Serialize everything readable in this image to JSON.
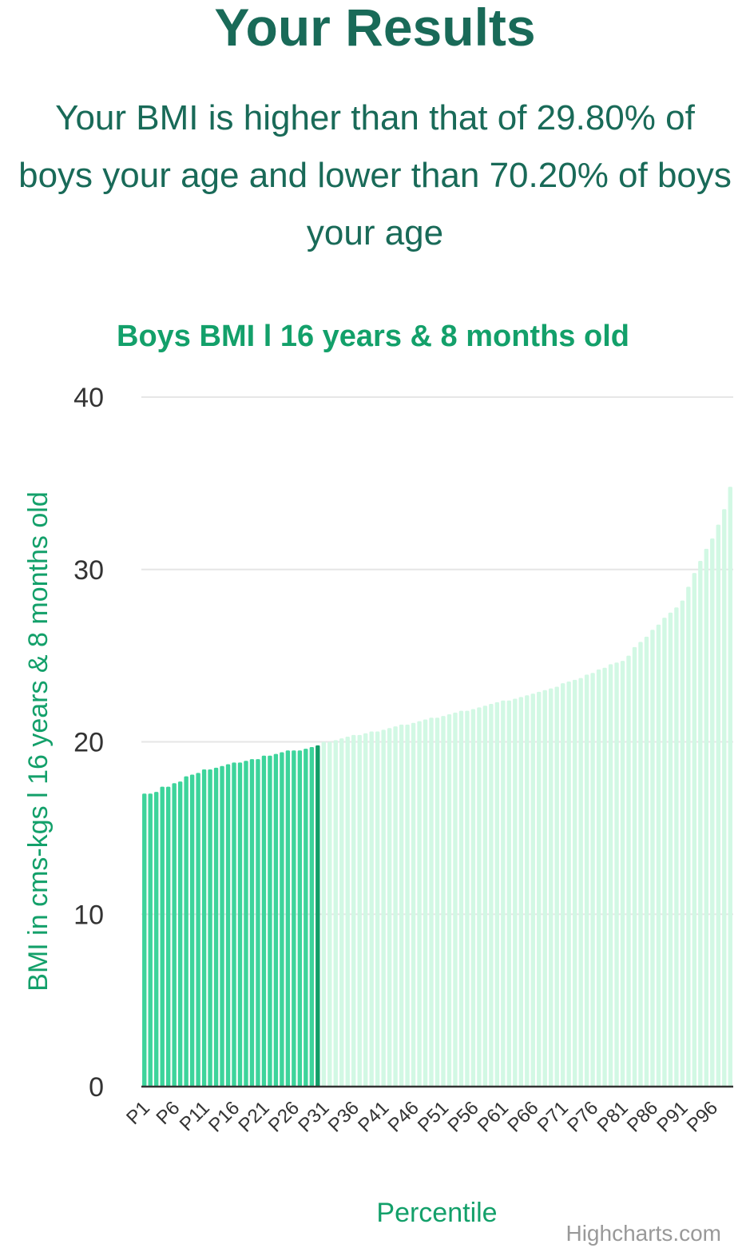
{
  "header": {
    "title": "Your Results",
    "summary": "Your BMI is higher than that of 29.80% of boys your age and lower than 70.20% of boys your age"
  },
  "colors": {
    "heading": "#196a58",
    "accent": "#13a06a",
    "bar_below": "#3dd49b",
    "bar_user": "#129e68",
    "bar_above": "#d2f8e4",
    "grid": "#e6e6e6",
    "axis": "#333333"
  },
  "chart_data": {
    "type": "bar",
    "title": "Boys BMI l 16 years & 8 months old",
    "xlabel": "Percentile",
    "ylabel": "BMI in cms-kgs l 16 years & 8 months old",
    "ylim": [
      0,
      40
    ],
    "yticks": [
      0,
      10,
      20,
      30,
      40
    ],
    "grid": true,
    "highlight_index": 29,
    "below_count": 29,
    "categories": [
      "P1",
      "P2",
      "P3",
      "P4",
      "P5",
      "P6",
      "P7",
      "P8",
      "P9",
      "P10",
      "P11",
      "P12",
      "P13",
      "P14",
      "P15",
      "P16",
      "P17",
      "P18",
      "P19",
      "P20",
      "P21",
      "P22",
      "P23",
      "P24",
      "P25",
      "P26",
      "P27",
      "P28",
      "P29",
      "P30",
      "P31",
      "P32",
      "P33",
      "P34",
      "P35",
      "P36",
      "P37",
      "P38",
      "P39",
      "P40",
      "P41",
      "P42",
      "P43",
      "P44",
      "P45",
      "P46",
      "P47",
      "P48",
      "P49",
      "P50",
      "P51",
      "P52",
      "P53",
      "P54",
      "P55",
      "P56",
      "P57",
      "P58",
      "P59",
      "P60",
      "P61",
      "P62",
      "P63",
      "P64",
      "P65",
      "P66",
      "P67",
      "P68",
      "P69",
      "P70",
      "P71",
      "P72",
      "P73",
      "P74",
      "P75",
      "P76",
      "P77",
      "P78",
      "P79",
      "P80",
      "P81",
      "P82",
      "P83",
      "P84",
      "P85",
      "P86",
      "P87",
      "P88",
      "P89",
      "P90",
      "P91",
      "P92",
      "P93",
      "P94",
      "P95",
      "P96",
      "P97",
      "P98",
      "P99"
    ],
    "tick_labels": [
      "P1",
      "P6",
      "P11",
      "P16",
      "P21",
      "P26",
      "P31",
      "P36",
      "P41",
      "P46",
      "P51",
      "P56",
      "P61",
      "P66",
      "P71",
      "P76",
      "P81",
      "P86",
      "P91",
      "P96"
    ],
    "values": [
      17.0,
      17.0,
      17.1,
      17.4,
      17.4,
      17.6,
      17.7,
      18.0,
      18.1,
      18.2,
      18.4,
      18.4,
      18.5,
      18.6,
      18.7,
      18.8,
      18.8,
      18.9,
      19.0,
      19.0,
      19.2,
      19.2,
      19.3,
      19.4,
      19.5,
      19.5,
      19.5,
      19.6,
      19.7,
      19.8,
      20.0,
      20.0,
      20.1,
      20.2,
      20.3,
      20.4,
      20.4,
      20.5,
      20.6,
      20.6,
      20.7,
      20.8,
      20.9,
      21.0,
      21.0,
      21.1,
      21.2,
      21.3,
      21.4,
      21.4,
      21.5,
      21.6,
      21.7,
      21.8,
      21.8,
      21.9,
      22.0,
      22.1,
      22.2,
      22.3,
      22.4,
      22.4,
      22.5,
      22.6,
      22.7,
      22.8,
      22.9,
      23.0,
      23.1,
      23.2,
      23.4,
      23.5,
      23.6,
      23.7,
      23.9,
      24.0,
      24.2,
      24.3,
      24.5,
      24.6,
      24.7,
      25.0,
      25.5,
      25.8,
      26.1,
      26.5,
      26.8,
      27.2,
      27.5,
      27.8,
      28.2,
      29.0,
      29.8,
      30.5,
      31.2,
      31.8,
      32.6,
      33.5,
      34.8
    ]
  },
  "credits": "Highcharts.com"
}
